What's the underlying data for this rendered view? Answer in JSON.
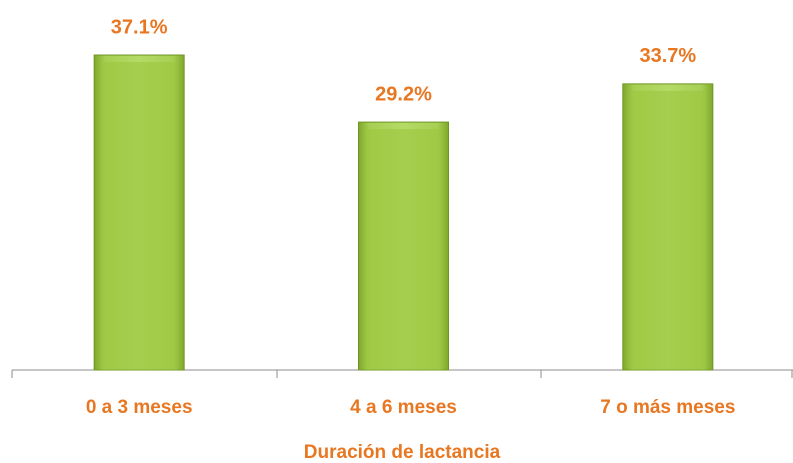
{
  "chart_data": {
    "type": "bar",
    "x_label": "Duración de lactancia",
    "categories": [
      "0 a 3 meses",
      "4 a 6 meses",
      "7 o más meses"
    ],
    "values": [
      37.1,
      29.2,
      33.7
    ],
    "value_labels": [
      "37.1%",
      "29.2%",
      "33.7%"
    ],
    "color": "#9bc53d"
  }
}
